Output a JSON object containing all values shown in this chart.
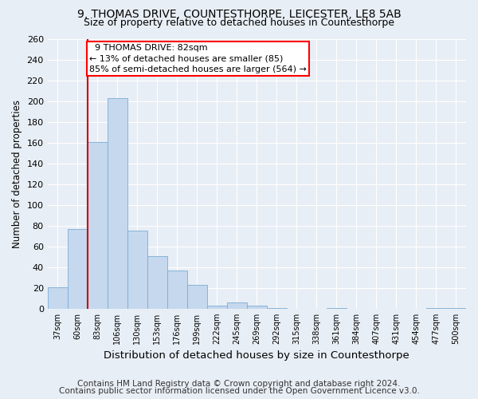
{
  "title1": "9, THOMAS DRIVE, COUNTESTHORPE, LEICESTER, LE8 5AB",
  "title2": "Size of property relative to detached houses in Countesthorpe",
  "xlabel": "Distribution of detached houses by size in Countesthorpe",
  "ylabel": "Number of detached properties",
  "footnote1": "Contains HM Land Registry data © Crown copyright and database right 2024.",
  "footnote2": "Contains public sector information licensed under the Open Government Licence v3.0.",
  "bar_labels": [
    "37sqm",
    "60sqm",
    "83sqm",
    "106sqm",
    "130sqm",
    "153sqm",
    "176sqm",
    "199sqm",
    "222sqm",
    "245sqm",
    "269sqm",
    "292sqm",
    "315sqm",
    "338sqm",
    "361sqm",
    "384sqm",
    "407sqm",
    "431sqm",
    "454sqm",
    "477sqm",
    "500sqm"
  ],
  "bar_values": [
    21,
    77,
    161,
    203,
    75,
    51,
    37,
    23,
    3,
    6,
    3,
    1,
    0,
    0,
    1,
    0,
    0,
    0,
    0,
    1,
    1
  ],
  "bar_color": "#c5d8ee",
  "bar_edge_color": "#7aadd4",
  "annotation_title": "9 THOMAS DRIVE: 82sqm",
  "annotation_line1": "← 13% of detached houses are smaller (85)",
  "annotation_line2": "85% of semi-detached houses are larger (564) →",
  "annotation_box_color": "white",
  "annotation_box_edge": "red",
  "vline_color": "#cc0000",
  "vline_x": 1.5,
  "ylim": [
    0,
    260
  ],
  "yticks": [
    0,
    20,
    40,
    60,
    80,
    100,
    120,
    140,
    160,
    180,
    200,
    220,
    240,
    260
  ],
  "bg_color": "#e8eef5",
  "plot_bg_color": "#e8eef5",
  "grid_color": "white",
  "title1_fontsize": 10,
  "title2_fontsize": 9,
  "xlabel_fontsize": 9.5,
  "ylabel_fontsize": 8.5,
  "footnote_fontsize": 7.5
}
